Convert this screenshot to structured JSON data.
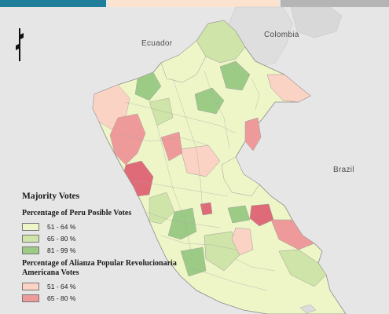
{
  "legend": {
    "title": "Majority Votes",
    "groups": [
      {
        "title": "Percentage of Peru Posible Votes",
        "items": [
          {
            "label": "51 - 64 %",
            "color": "#eef6c8"
          },
          {
            "label": "65 - 80 %",
            "color": "#cfe4a8"
          },
          {
            "label": "81 - 99 %",
            "color": "#9ccb86"
          }
        ]
      },
      {
        "title": "Percentage of Alianza Popular Revolucionaria Americana Votes",
        "items": [
          {
            "label": "51 - 64 %",
            "color": "#fbd3c4"
          },
          {
            "label": "65 - 80 %",
            "color": "#ef9a9a"
          }
        ]
      }
    ]
  },
  "countries": {
    "ecuador": "Ecuador",
    "colombia": "Colombia",
    "brazil": "Brazil"
  },
  "colors": {
    "background": "#e6e6e6",
    "peru_light": "#eef6c8",
    "peru_mid": "#cfe4a8",
    "peru_dark": "#9ccb86",
    "apra_light": "#fbd3c4",
    "apra_mid": "#ef9a9a",
    "apra_dark": "#e06b78"
  }
}
